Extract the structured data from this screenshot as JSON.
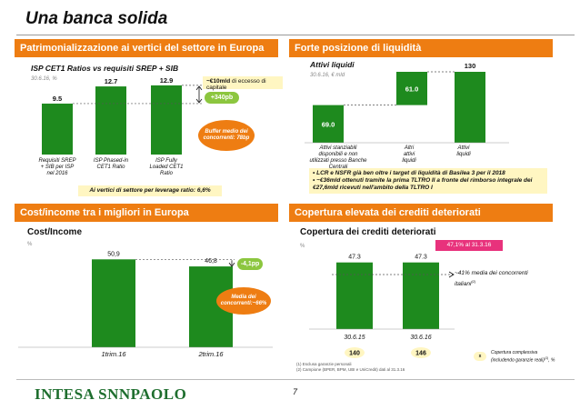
{
  "title": "Una banca solida",
  "page_number": "7",
  "logo": "INTESA SNNPAOLO",
  "colors": {
    "accent": "#ee7d12",
    "bar": "#1e8a1e",
    "note_bg": "#fff6c2",
    "pill": "#8cc63f",
    "pink_note": "#e8327c"
  },
  "panel_tl": {
    "header": "Patrimonializzazione ai vertici del settore in Europa",
    "subtitle": "ISP CET1 Ratios vs requisiti SREP + SIB",
    "date": "30.6.16, %",
    "excess_note_bold": "~€10mld",
    "excess_note_rest": " di eccesso di capitale",
    "pill": "+340pb",
    "oval": "Buffer medio dei concorrenti: 78bp",
    "footer": "Ai vertici di settore per leverage ratio: 6,6%"
  },
  "panel_tr": {
    "header": "Forte posizione di liquidità",
    "subtitle": "Attivi liquidi",
    "date": "30.6.16, € mld",
    "bullets": [
      "LCR e NSFR già ben oltre i target di liquidità di Basilea 3 per il 2018",
      "~€36mld ottenuti tramite la prima TLTRO II a fronte del rimborso integrale dei €27,6mld ricevuti nell'ambito della TLTRO I"
    ]
  },
  "panel_bl": {
    "header": "Cost/income tra i migliori in Europa",
    "subtitle": "Cost/Income",
    "unit": "%",
    "pill": "-4,1pp",
    "oval": "Media dei concorrenti:~66%"
  },
  "panel_br": {
    "header": "Copertura elevata dei crediti deteriorati",
    "subtitle": "Copertura dei crediti deteriorati",
    "unit": "%",
    "pink_note": "47,1% al 31.3.16",
    "peer_note": "~41% media dei concorrenti italiani",
    "peer_note_sup": "(2)",
    "legend_text": "Copertura complessiva (includendo garanzie reali)",
    "legend_text_sup": "(1)",
    "legend_text_tail": ", %",
    "legend_marker": "x",
    "footnote1": "(1) Esclusa garanzie personali",
    "footnote2": "(2) Campione (BPER, BPM, UBI e UniCredit) dati al 31.3.16"
  },
  "chart_data": [
    {
      "type": "bar",
      "title": "ISP CET1 Ratios vs requisiti SREP + SIB",
      "categories": [
        "Requisiti SREP + SIB per ISP nel 2016",
        "ISP Phased-in CET1 Ratio",
        "ISP Fully Loaded CET1 Ratio"
      ],
      "values": [
        9.5,
        12.7,
        12.9
      ],
      "value_labels": [
        "9.5",
        "12.7",
        "12.9"
      ],
      "ylim": [
        0,
        14
      ]
    },
    {
      "type": "bar",
      "subtype": "waterfall",
      "title": "Attivi liquidi",
      "categories": [
        "Attivi stanziabili disponibili e non utilizzati presso Banche Centrali",
        "Altri attivi liquidi",
        "Attivi liquidi"
      ],
      "values": [
        69.0,
        61.0,
        130
      ],
      "value_labels": [
        "69.0",
        "61.0",
        "130"
      ],
      "ylim": [
        0,
        140
      ]
    },
    {
      "type": "bar",
      "title": "Cost/Income",
      "categories": [
        "1trim.16",
        "2trim.16"
      ],
      "values": [
        50.9,
        46.8
      ],
      "value_labels": [
        "50,9",
        "46,8"
      ],
      "ylim": [
        0,
        55
      ]
    },
    {
      "type": "bar",
      "title": "Copertura dei crediti deteriorati",
      "categories": [
        "30.6.15",
        "30.6.16"
      ],
      "values": [
        47.3,
        47.3
      ],
      "value_labels": [
        "47.3",
        "47.3"
      ],
      "badges": [
        "140",
        "146"
      ],
      "ylim": [
        0,
        55
      ]
    }
  ]
}
